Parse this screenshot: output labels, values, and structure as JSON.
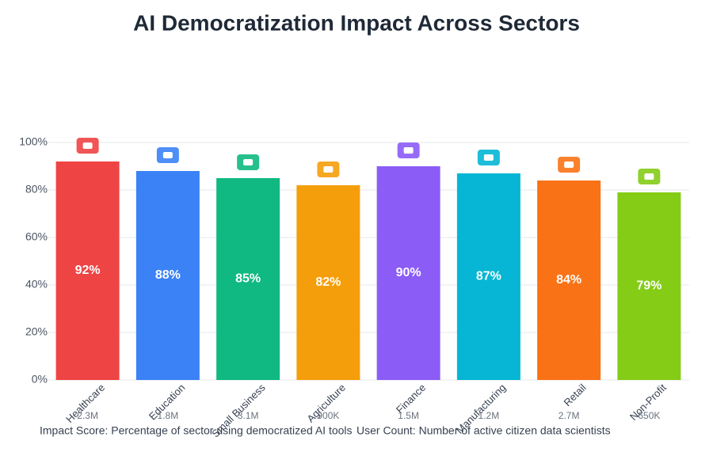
{
  "chart_data": {
    "type": "bar",
    "title": "AI Democratization Impact Across Sectors",
    "categories": [
      "Healthcare",
      "Education",
      "Small Business",
      "Agriculture",
      "Finance",
      "Manufacturing",
      "Retail",
      "Non-Profit"
    ],
    "values": [
      92,
      88,
      85,
      82,
      90,
      87,
      84,
      79
    ],
    "value_labels": [
      "92%",
      "88%",
      "85%",
      "82%",
      "90%",
      "87%",
      "84%",
      "79%"
    ],
    "user_counts": [
      "2.3M",
      "1.8M",
      "3.1M",
      "900K",
      "1.5M",
      "1.2M",
      "2.7M",
      "650K"
    ],
    "colors": [
      "#ef4444",
      "#3b82f6",
      "#10b981",
      "#f59e0b",
      "#8b5cf6",
      "#06b6d4",
      "#f97316",
      "#84cc16"
    ],
    "ylim": [
      0,
      110
    ],
    "yticks": [
      {
        "value": 0,
        "label": "0%"
      },
      {
        "value": 20,
        "label": "20%"
      },
      {
        "value": 40,
        "label": "40%"
      },
      {
        "value": 60,
        "label": "60%"
      },
      {
        "value": 80,
        "label": "80%"
      },
      {
        "value": 100,
        "label": "100%"
      }
    ],
    "grid": true,
    "footnotes": [
      "Impact Score: Percentage of sector using democratized AI tools",
      "User Count: Number of active citizen data scientists"
    ]
  }
}
